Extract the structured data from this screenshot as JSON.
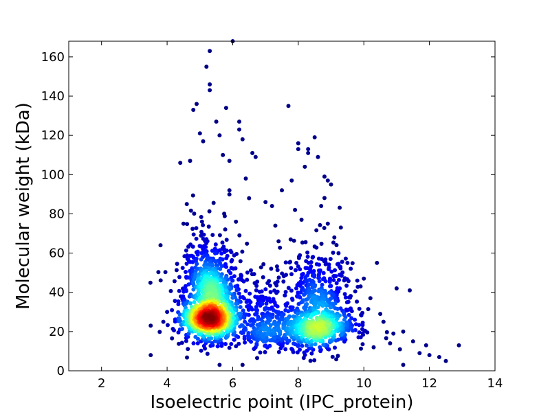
{
  "chart_data": {
    "type": "scatter",
    "title": "",
    "xlabel": "Isoelectric point (IPC_protein)",
    "ylabel": "Molecular weight (kDa)",
    "xlim": [
      1,
      14
    ],
    "ylim": [
      0,
      168
    ],
    "xticks": [
      2,
      4,
      6,
      8,
      10,
      12,
      14
    ],
    "yticks": [
      0,
      20,
      40,
      60,
      80,
      100,
      120,
      140,
      160
    ],
    "xtick_labels": [
      "2",
      "4",
      "6",
      "8",
      "10",
      "12",
      "14"
    ],
    "ytick_labels": [
      "0",
      "20",
      "40",
      "60",
      "80",
      "100",
      "120",
      "140",
      "160"
    ],
    "grid": false,
    "legend": "none",
    "color_encoding": "point density (jet colormap: blue low, red high)",
    "colormap": [
      "#00007f",
      "#0000ff",
      "#007fff",
      "#00ffff",
      "#7fff7f",
      "#ffff00",
      "#ff7f00",
      "#ff0000",
      "#7f0000"
    ],
    "clusters": [
      {
        "center": [
          5.3,
          30
        ],
        "spread": [
          0.45,
          11
        ],
        "count": 1400
      },
      {
        "center": [
          8.6,
          25
        ],
        "spread": [
          0.55,
          11
        ],
        "count": 900
      },
      {
        "center": [
          7.0,
          22
        ],
        "spread": [
          0.35,
          9
        ],
        "count": 250
      }
    ],
    "outliers": [
      [
        3.5,
        23
      ],
      [
        3.8,
        64
      ],
      [
        3.5,
        8
      ],
      [
        4.0,
        30
      ],
      [
        4.4,
        106
      ],
      [
        4.7,
        107
      ],
      [
        4.8,
        133
      ],
      [
        4.9,
        136
      ],
      [
        5.0,
        121
      ],
      [
        5.1,
        117
      ],
      [
        5.2,
        155
      ],
      [
        5.3,
        163
      ],
      [
        5.3,
        146
      ],
      [
        5.3,
        143
      ],
      [
        5.5,
        127
      ],
      [
        5.6,
        120
      ],
      [
        5.8,
        134
      ],
      [
        5.7,
        110
      ],
      [
        5.9,
        107
      ],
      [
        6.2,
        127
      ],
      [
        6.2,
        123
      ],
      [
        6.3,
        118
      ],
      [
        6.4,
        98
      ],
      [
        6.6,
        111
      ],
      [
        6.7,
        109
      ],
      [
        6.0,
        168
      ],
      [
        7.0,
        86
      ],
      [
        7.2,
        84
      ],
      [
        7.5,
        92
      ],
      [
        7.7,
        135
      ],
      [
        7.8,
        97
      ],
      [
        8.0,
        116
      ],
      [
        8.0,
        113
      ],
      [
        8.2,
        104
      ],
      [
        8.3,
        113
      ],
      [
        8.3,
        111
      ],
      [
        8.5,
        119
      ],
      [
        8.6,
        109
      ],
      [
        8.8,
        99
      ],
      [
        8.9,
        97
      ],
      [
        9.0,
        95
      ],
      [
        9.3,
        73
      ],
      [
        10.0,
        47
      ],
      [
        10.2,
        37
      ],
      [
        10.4,
        55
      ],
      [
        10.5,
        29
      ],
      [
        10.6,
        25
      ],
      [
        10.9,
        19
      ],
      [
        11.0,
        42
      ],
      [
        11.2,
        20
      ],
      [
        11.4,
        41
      ],
      [
        11.5,
        15
      ],
      [
        11.7,
        9
      ],
      [
        11.9,
        13
      ],
      [
        12.0,
        8
      ],
      [
        12.3,
        7
      ],
      [
        12.5,
        5
      ],
      [
        12.9,
        13
      ],
      [
        10.8,
        14
      ],
      [
        11.1,
        11
      ],
      [
        10.3,
        12
      ],
      [
        9.8,
        46
      ],
      [
        9.9,
        43
      ],
      [
        6.5,
        88
      ],
      [
        6.1,
        76
      ],
      [
        5.9,
        92
      ],
      [
        4.6,
        85
      ],
      [
        4.5,
        75
      ],
      [
        7.3,
        74
      ],
      [
        7.4,
        66
      ],
      [
        7.9,
        82
      ],
      [
        8.1,
        77
      ],
      [
        8.7,
        84
      ],
      [
        8.9,
        75
      ],
      [
        9.1,
        68
      ],
      [
        9.5,
        55
      ],
      [
        9.6,
        52
      ],
      [
        5.6,
        3
      ],
      [
        6.3,
        3
      ],
      [
        11.2,
        3
      ]
    ]
  }
}
